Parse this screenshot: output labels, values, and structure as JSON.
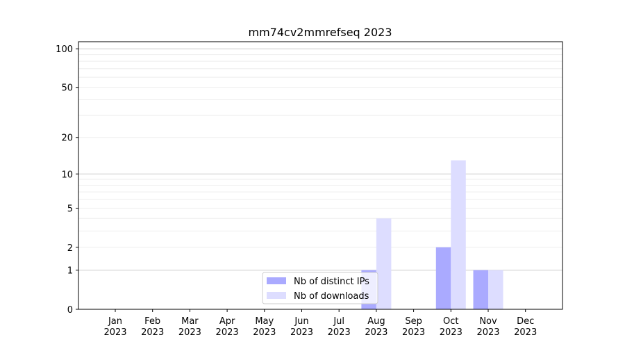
{
  "chart_data": {
    "type": "bar",
    "title": "mm74cv2mmrefseq 2023",
    "xlabel": "",
    "ylabel": "",
    "y_scale": "log(1+y)",
    "ylim": [
      0,
      113.5
    ],
    "y_ticks": [
      0,
      1,
      2,
      5,
      10,
      20,
      50,
      100
    ],
    "grid": true,
    "legend_position": "bottom-center",
    "categories": [
      [
        "Jan",
        "2023"
      ],
      [
        "Feb",
        "2023"
      ],
      [
        "Mar",
        "2023"
      ],
      [
        "Apr",
        "2023"
      ],
      [
        "May",
        "2023"
      ],
      [
        "Jun",
        "2023"
      ],
      [
        "Jul",
        "2023"
      ],
      [
        "Aug",
        "2023"
      ],
      [
        "Sep",
        "2023"
      ],
      [
        "Oct",
        "2023"
      ],
      [
        "Nov",
        "2023"
      ],
      [
        "Dec",
        "2023"
      ]
    ],
    "series": [
      {
        "name": "Nb of distinct IPs",
        "color": "#aaaaff",
        "values": [
          0,
          0,
          0,
          0,
          0,
          0,
          0,
          1,
          0,
          2,
          1,
          0
        ]
      },
      {
        "name": "Nb of downloads",
        "color": "#ddddff",
        "values": [
          0,
          0,
          0,
          0,
          0,
          0,
          0,
          4,
          0,
          13,
          1,
          0
        ]
      }
    ]
  }
}
